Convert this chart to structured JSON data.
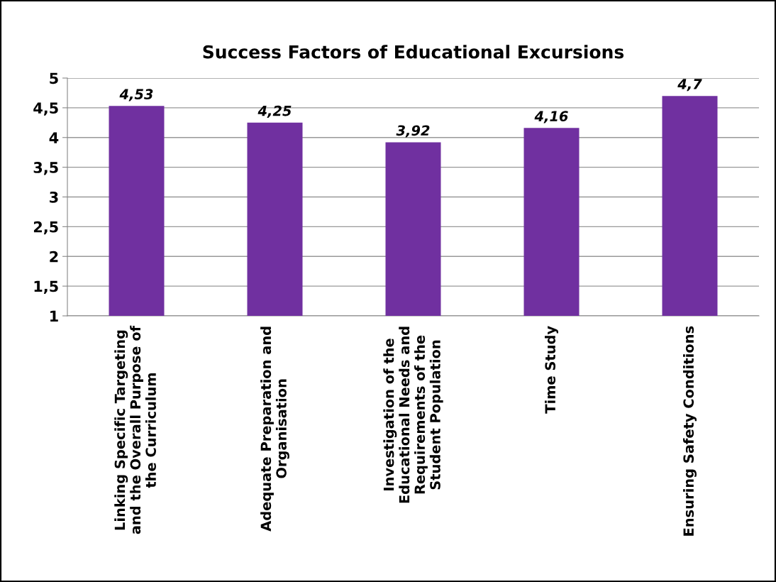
{
  "chart_data": {
    "type": "bar",
    "title": "Success Factors of Educational Excursions",
    "categories": [
      "Linking Specific Targeting\nand the Overall Purpose of\nthe Curriculum",
      "Adequate Preparation and\nOrganisation",
      "Investigation of the\nEducational Needs and\nRequirements of the\nStudent Population",
      "Time Study",
      "Ensuring Safety Conditions"
    ],
    "values": [
      4.53,
      4.25,
      3.92,
      4.16,
      4.7
    ],
    "value_labels": [
      "4,53",
      "4,25",
      "3,92",
      "4,16",
      "4,7"
    ],
    "color": "#7030a0",
    "ylim": [
      1,
      5
    ],
    "yticks": [
      1,
      {
        "value": 1.5,
        "label": "1,5"
      },
      2,
      {
        "value": 2.5,
        "label": "2,5"
      },
      3,
      {
        "value": 3.5,
        "label": "3,5"
      },
      4,
      {
        "value": 4.5,
        "label": "4,5"
      },
      5
    ],
    "grid": "y"
  }
}
